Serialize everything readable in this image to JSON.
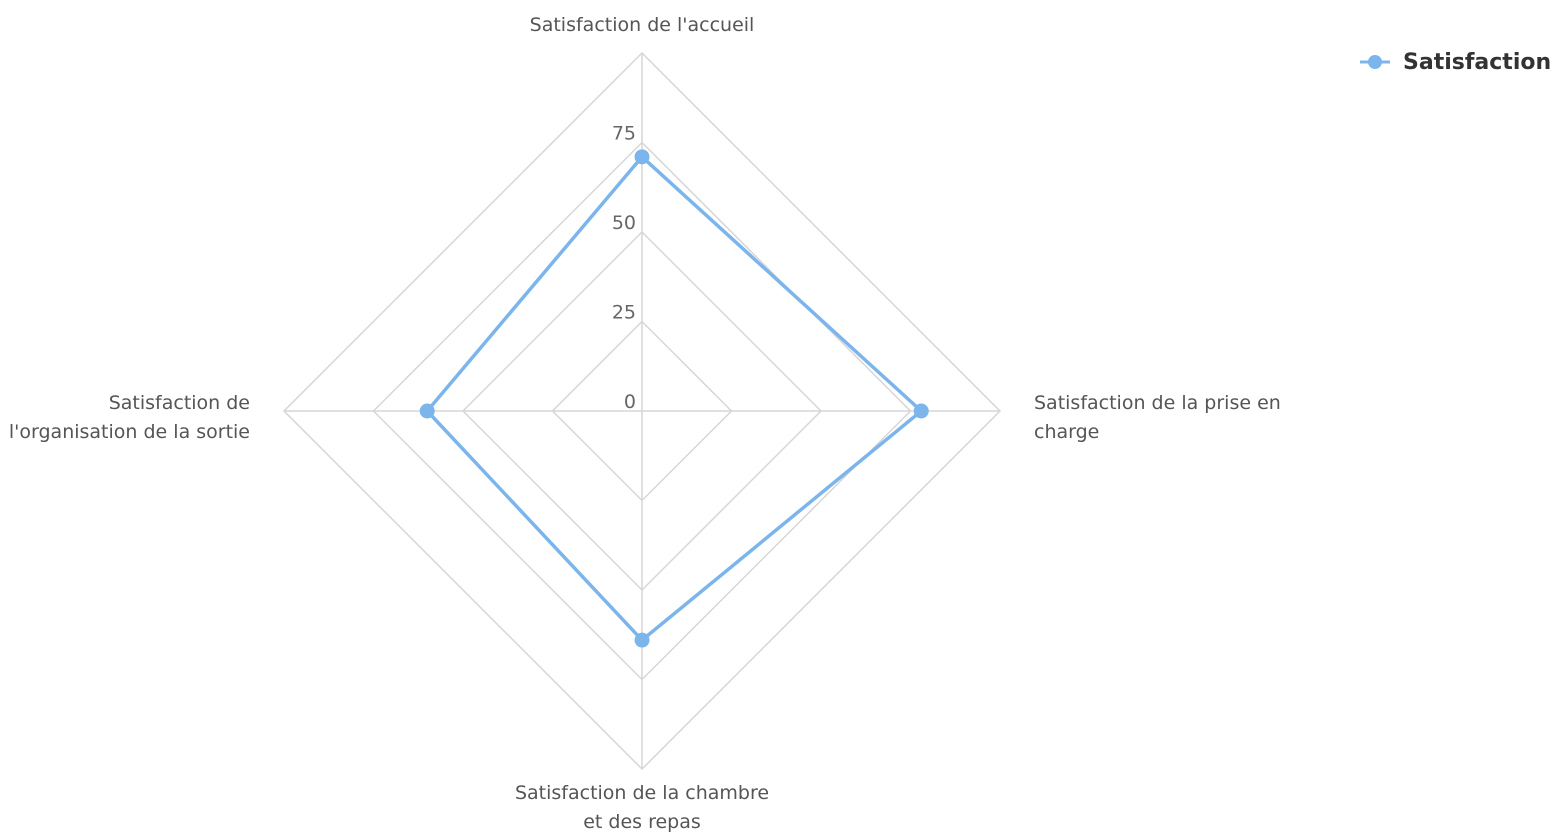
{
  "chart_data": {
    "type": "radar",
    "title": "",
    "categories": [
      [
        "Satisfaction de l'accueil"
      ],
      [
        "Satisfaction de la prise en",
        "charge"
      ],
      [
        "Satisfaction de la chambre",
        "et des repas"
      ],
      [
        "Satisfaction de",
        "l'organisation de la sortie"
      ]
    ],
    "series": [
      {
        "name": "Satisfaction",
        "values": [
          71,
          78,
          64,
          60
        ],
        "color": "#7cb5ec"
      }
    ],
    "radial_ticks": [
      "0",
      "25",
      "50",
      "75"
    ],
    "rlim": [
      0,
      100
    ],
    "grid": true,
    "grid_shape": "polygon",
    "legend_position": "top-right"
  }
}
